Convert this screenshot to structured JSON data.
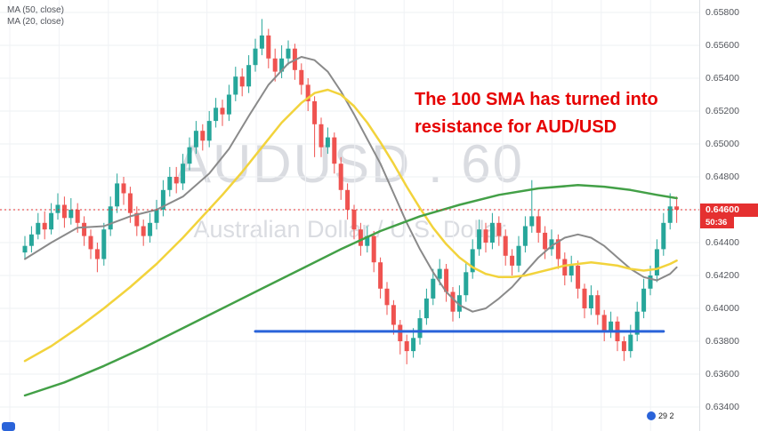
{
  "legend": {
    "ma50": "MA (50, close)",
    "ma20": "MA (20, close)"
  },
  "watermark": {
    "line1": "AUDUSD . 60",
    "line2": "Australian Dollar / U.S. Dollar"
  },
  "annotation": {
    "line1": "The 100 SMA has turned into",
    "line2": "resistance for AUD/USD",
    "color": "#e60000"
  },
  "price_axis": {
    "ticks": [
      "0.65800",
      "0.65600",
      "0.65400",
      "0.65200",
      "0.65000",
      "0.64800",
      "0.64600",
      "0.64400",
      "0.64200",
      "0.64000",
      "0.63800",
      "0.63600",
      "0.63400"
    ],
    "current_price": "0.64600",
    "countdown": "50:36",
    "badge_color": "#e53030"
  },
  "footer": {
    "bottom_right_text": "29 2"
  },
  "chart_data": {
    "type": "candlestick",
    "symbol": "AUDUSD",
    "timeframe": "60",
    "title": "AUDUSD 60 — Australian Dollar / U.S. Dollar",
    "y_range": [
      0.634,
      0.658
    ],
    "grid": true,
    "up_color": "#26a69a",
    "down_color": "#ef5350",
    "candles": [
      [
        0.6434,
        0.6444,
        0.643,
        0.6438
      ],
      [
        0.6438,
        0.645,
        0.6434,
        0.6445
      ],
      [
        0.6445,
        0.6458,
        0.6442,
        0.6452
      ],
      [
        0.6452,
        0.6459,
        0.6442,
        0.6448
      ],
      [
        0.6448,
        0.6464,
        0.6445,
        0.6458
      ],
      [
        0.6458,
        0.647,
        0.6454,
        0.6463
      ],
      [
        0.6463,
        0.6468,
        0.6449,
        0.6455
      ],
      [
        0.6455,
        0.6467,
        0.6451,
        0.646
      ],
      [
        0.646,
        0.6464,
        0.6446,
        0.6452
      ],
      [
        0.6452,
        0.6456,
        0.6438,
        0.6444
      ],
      [
        0.6444,
        0.6448,
        0.643,
        0.6436
      ],
      [
        0.6436,
        0.644,
        0.6422,
        0.643
      ],
      [
        0.643,
        0.6452,
        0.6426,
        0.6448
      ],
      [
        0.6448,
        0.6468,
        0.6444,
        0.6462
      ],
      [
        0.6462,
        0.6482,
        0.6458,
        0.6476
      ],
      [
        0.6476,
        0.648,
        0.6463,
        0.647
      ],
      [
        0.647,
        0.6474,
        0.6452,
        0.6458
      ],
      [
        0.6458,
        0.6462,
        0.6444,
        0.645
      ],
      [
        0.645,
        0.6454,
        0.6438,
        0.6444
      ],
      [
        0.6444,
        0.6458,
        0.644,
        0.6452
      ],
      [
        0.6452,
        0.6466,
        0.6448,
        0.646
      ],
      [
        0.646,
        0.6478,
        0.6456,
        0.6472
      ],
      [
        0.6472,
        0.6486,
        0.6468,
        0.648
      ],
      [
        0.648,
        0.6486,
        0.647,
        0.6476
      ],
      [
        0.6476,
        0.6494,
        0.6472,
        0.6488
      ],
      [
        0.6488,
        0.6504,
        0.6484,
        0.6498
      ],
      [
        0.6498,
        0.6514,
        0.6494,
        0.6508
      ],
      [
        0.6508,
        0.6512,
        0.6496,
        0.6502
      ],
      [
        0.6502,
        0.652,
        0.6498,
        0.6514
      ],
      [
        0.6514,
        0.6528,
        0.651,
        0.6522
      ],
      [
        0.6522,
        0.6527,
        0.6511,
        0.6518
      ],
      [
        0.6518,
        0.6536,
        0.6514,
        0.653
      ],
      [
        0.653,
        0.6547,
        0.6526,
        0.6541
      ],
      [
        0.6541,
        0.6546,
        0.6529,
        0.6535
      ],
      [
        0.6535,
        0.6554,
        0.6531,
        0.6548
      ],
      [
        0.6548,
        0.6564,
        0.6544,
        0.6558
      ],
      [
        0.6558,
        0.6576,
        0.6554,
        0.6566
      ],
      [
        0.6566,
        0.657,
        0.6546,
        0.6552
      ],
      [
        0.6552,
        0.6558,
        0.6538,
        0.6544
      ],
      [
        0.6544,
        0.656,
        0.654,
        0.6552
      ],
      [
        0.6552,
        0.6563,
        0.6548,
        0.6558
      ],
      [
        0.6558,
        0.6561,
        0.6539,
        0.6545
      ],
      [
        0.6545,
        0.6549,
        0.653,
        0.6536
      ],
      [
        0.6536,
        0.654,
        0.652,
        0.6526
      ],
      [
        0.6526,
        0.6529,
        0.6492,
        0.6512
      ],
      [
        0.6512,
        0.6516,
        0.6492,
        0.6498
      ],
      [
        0.6498,
        0.651,
        0.6494,
        0.6504
      ],
      [
        0.6504,
        0.6507,
        0.6482,
        0.6488
      ],
      [
        0.6488,
        0.6492,
        0.6466,
        0.6472
      ],
      [
        0.6472,
        0.6476,
        0.6454,
        0.646
      ],
      [
        0.646,
        0.6463,
        0.6442,
        0.6448
      ],
      [
        0.6448,
        0.6452,
        0.6432,
        0.6438
      ],
      [
        0.6438,
        0.645,
        0.6434,
        0.6444
      ],
      [
        0.6444,
        0.6447,
        0.6422,
        0.6428
      ],
      [
        0.6428,
        0.6431,
        0.6406,
        0.6412
      ],
      [
        0.6412,
        0.6416,
        0.6396,
        0.6402
      ],
      [
        0.6402,
        0.6405,
        0.6384,
        0.639
      ],
      [
        0.639,
        0.6393,
        0.6372,
        0.638
      ],
      [
        0.638,
        0.6384,
        0.6366,
        0.6374
      ],
      [
        0.6374,
        0.6388,
        0.637,
        0.6382
      ],
      [
        0.6382,
        0.6399,
        0.6378,
        0.6394
      ],
      [
        0.6394,
        0.6412,
        0.639,
        0.6406
      ],
      [
        0.6406,
        0.6424,
        0.6402,
        0.6418
      ],
      [
        0.6418,
        0.643,
        0.6414,
        0.6424
      ],
      [
        0.6424,
        0.6427,
        0.6404,
        0.641
      ],
      [
        0.641,
        0.6413,
        0.6392,
        0.6398
      ],
      [
        0.6398,
        0.6414,
        0.6394,
        0.6408
      ],
      [
        0.6408,
        0.6428,
        0.6404,
        0.6422
      ],
      [
        0.6422,
        0.6442,
        0.6418,
        0.6436
      ],
      [
        0.6436,
        0.6454,
        0.6432,
        0.6448
      ],
      [
        0.6448,
        0.6452,
        0.6434,
        0.644
      ],
      [
        0.644,
        0.6458,
        0.6436,
        0.6452
      ],
      [
        0.6452,
        0.6456,
        0.6438,
        0.6444
      ],
      [
        0.6444,
        0.6448,
        0.6426,
        0.6432
      ],
      [
        0.6432,
        0.6436,
        0.642,
        0.6426
      ],
      [
        0.6426,
        0.6444,
        0.6422,
        0.6438
      ],
      [
        0.6438,
        0.6456,
        0.6434,
        0.645
      ],
      [
        0.645,
        0.6478,
        0.6446,
        0.6456
      ],
      [
        0.6456,
        0.646,
        0.644,
        0.6446
      ],
      [
        0.6446,
        0.645,
        0.643,
        0.6436
      ],
      [
        0.6436,
        0.6448,
        0.6432,
        0.6442
      ],
      [
        0.6442,
        0.6445,
        0.6424,
        0.643
      ],
      [
        0.643,
        0.6434,
        0.6414,
        0.642
      ],
      [
        0.642,
        0.6432,
        0.6416,
        0.6426
      ],
      [
        0.6426,
        0.6429,
        0.6406,
        0.6412
      ],
      [
        0.6412,
        0.6415,
        0.6394,
        0.64
      ],
      [
        0.64,
        0.6414,
        0.6396,
        0.6408
      ],
      [
        0.6408,
        0.6411,
        0.639,
        0.6396
      ],
      [
        0.6396,
        0.6399,
        0.638,
        0.6386
      ],
      [
        0.6386,
        0.6398,
        0.6382,
        0.6392
      ],
      [
        0.6392,
        0.6395,
        0.6374,
        0.638
      ],
      [
        0.638,
        0.6383,
        0.6368,
        0.6374
      ],
      [
        0.6374,
        0.639,
        0.637,
        0.6384
      ],
      [
        0.6384,
        0.6404,
        0.638,
        0.6398
      ],
      [
        0.6398,
        0.6418,
        0.6394,
        0.6412
      ],
      [
        0.6412,
        0.6426,
        0.6408,
        0.642
      ],
      [
        0.642,
        0.6442,
        0.6416,
        0.6436
      ],
      [
        0.6436,
        0.6458,
        0.6432,
        0.6452
      ],
      [
        0.6452,
        0.647,
        0.6448,
        0.6462
      ],
      [
        0.6462,
        0.6468,
        0.6452,
        0.646
      ]
    ],
    "overlays": [
      {
        "name": "sma-20",
        "color": "#8a8a8a",
        "width": 2,
        "points": [
          [
            0,
            0.643
          ],
          [
            4,
            0.644
          ],
          [
            8,
            0.6449
          ],
          [
            12,
            0.645
          ],
          [
            16,
            0.6456
          ],
          [
            20,
            0.646
          ],
          [
            24,
            0.6468
          ],
          [
            28,
            0.6482
          ],
          [
            31,
            0.6497
          ],
          [
            34,
            0.6517
          ],
          [
            37,
            0.6536
          ],
          [
            40,
            0.6549
          ],
          [
            42,
            0.6553
          ],
          [
            44,
            0.6551
          ],
          [
            46,
            0.6544
          ],
          [
            48,
            0.6532
          ],
          [
            50,
            0.6518
          ],
          [
            52,
            0.6503
          ],
          [
            54,
            0.6488
          ],
          [
            56,
            0.647
          ],
          [
            58,
            0.6452
          ],
          [
            60,
            0.6436
          ],
          [
            62,
            0.6422
          ],
          [
            64,
            0.641
          ],
          [
            66,
            0.6402
          ],
          [
            68,
            0.6398
          ],
          [
            70,
            0.64
          ],
          [
            72,
            0.6406
          ],
          [
            74,
            0.6413
          ],
          [
            76,
            0.6422
          ],
          [
            78,
            0.6431
          ],
          [
            80,
            0.6438
          ],
          [
            82,
            0.6443
          ],
          [
            84,
            0.6445
          ],
          [
            86,
            0.6443
          ],
          [
            88,
            0.6438
          ],
          [
            90,
            0.6431
          ],
          [
            92,
            0.6424
          ],
          [
            94,
            0.6419
          ],
          [
            96,
            0.6417
          ],
          [
            98,
            0.6421
          ],
          [
            99,
            0.6425
          ]
        ]
      },
      {
        "name": "sma-50",
        "color": "#f2d33c",
        "width": 2.5,
        "points": [
          [
            0,
            0.6368
          ],
          [
            4,
            0.6377
          ],
          [
            8,
            0.6388
          ],
          [
            12,
            0.64
          ],
          [
            16,
            0.6413
          ],
          [
            20,
            0.6427
          ],
          [
            24,
            0.6443
          ],
          [
            27,
            0.6456
          ],
          [
            30,
            0.6469
          ],
          [
            33,
            0.6483
          ],
          [
            36,
            0.6498
          ],
          [
            39,
            0.6513
          ],
          [
            42,
            0.6525
          ],
          [
            44,
            0.6531
          ],
          [
            46,
            0.6533
          ],
          [
            48,
            0.653
          ],
          [
            50,
            0.6523
          ],
          [
            52,
            0.6513
          ],
          [
            54,
            0.6501
          ],
          [
            56,
            0.6488
          ],
          [
            58,
            0.6474
          ],
          [
            60,
            0.6461
          ],
          [
            62,
            0.6449
          ],
          [
            64,
            0.6439
          ],
          [
            66,
            0.6431
          ],
          [
            68,
            0.6425
          ],
          [
            70,
            0.6421
          ],
          [
            72,
            0.6419
          ],
          [
            74,
            0.6419
          ],
          [
            76,
            0.642
          ],
          [
            78,
            0.6422
          ],
          [
            80,
            0.6424
          ],
          [
            82,
            0.6426
          ],
          [
            84,
            0.6427
          ],
          [
            86,
            0.6428
          ],
          [
            88,
            0.6427
          ],
          [
            90,
            0.6426
          ],
          [
            92,
            0.6424
          ],
          [
            94,
            0.6423
          ],
          [
            96,
            0.6424
          ],
          [
            98,
            0.6427
          ],
          [
            99,
            0.6429
          ]
        ]
      },
      {
        "name": "sma-100",
        "color": "#43a047",
        "width": 2.5,
        "points": [
          [
            0,
            0.6347
          ],
          [
            6,
            0.6355
          ],
          [
            12,
            0.6365
          ],
          [
            18,
            0.6376
          ],
          [
            24,
            0.6388
          ],
          [
            30,
            0.64
          ],
          [
            36,
            0.6412
          ],
          [
            42,
            0.6424
          ],
          [
            48,
            0.6436
          ],
          [
            54,
            0.6447
          ],
          [
            60,
            0.6456
          ],
          [
            66,
            0.6463
          ],
          [
            72,
            0.6469
          ],
          [
            78,
            0.6473
          ],
          [
            84,
            0.6475
          ],
          [
            88,
            0.6474
          ],
          [
            92,
            0.6472
          ],
          [
            96,
            0.6469
          ],
          [
            99,
            0.6467
          ]
        ]
      }
    ],
    "support_line": {
      "name": "horizontal-support-line",
      "color": "#2a63d9",
      "price": 0.6386,
      "from_index": 35,
      "to_index": 97
    },
    "current_price_line": {
      "color": "#e53030",
      "price": 0.646,
      "style": "dotted"
    }
  }
}
